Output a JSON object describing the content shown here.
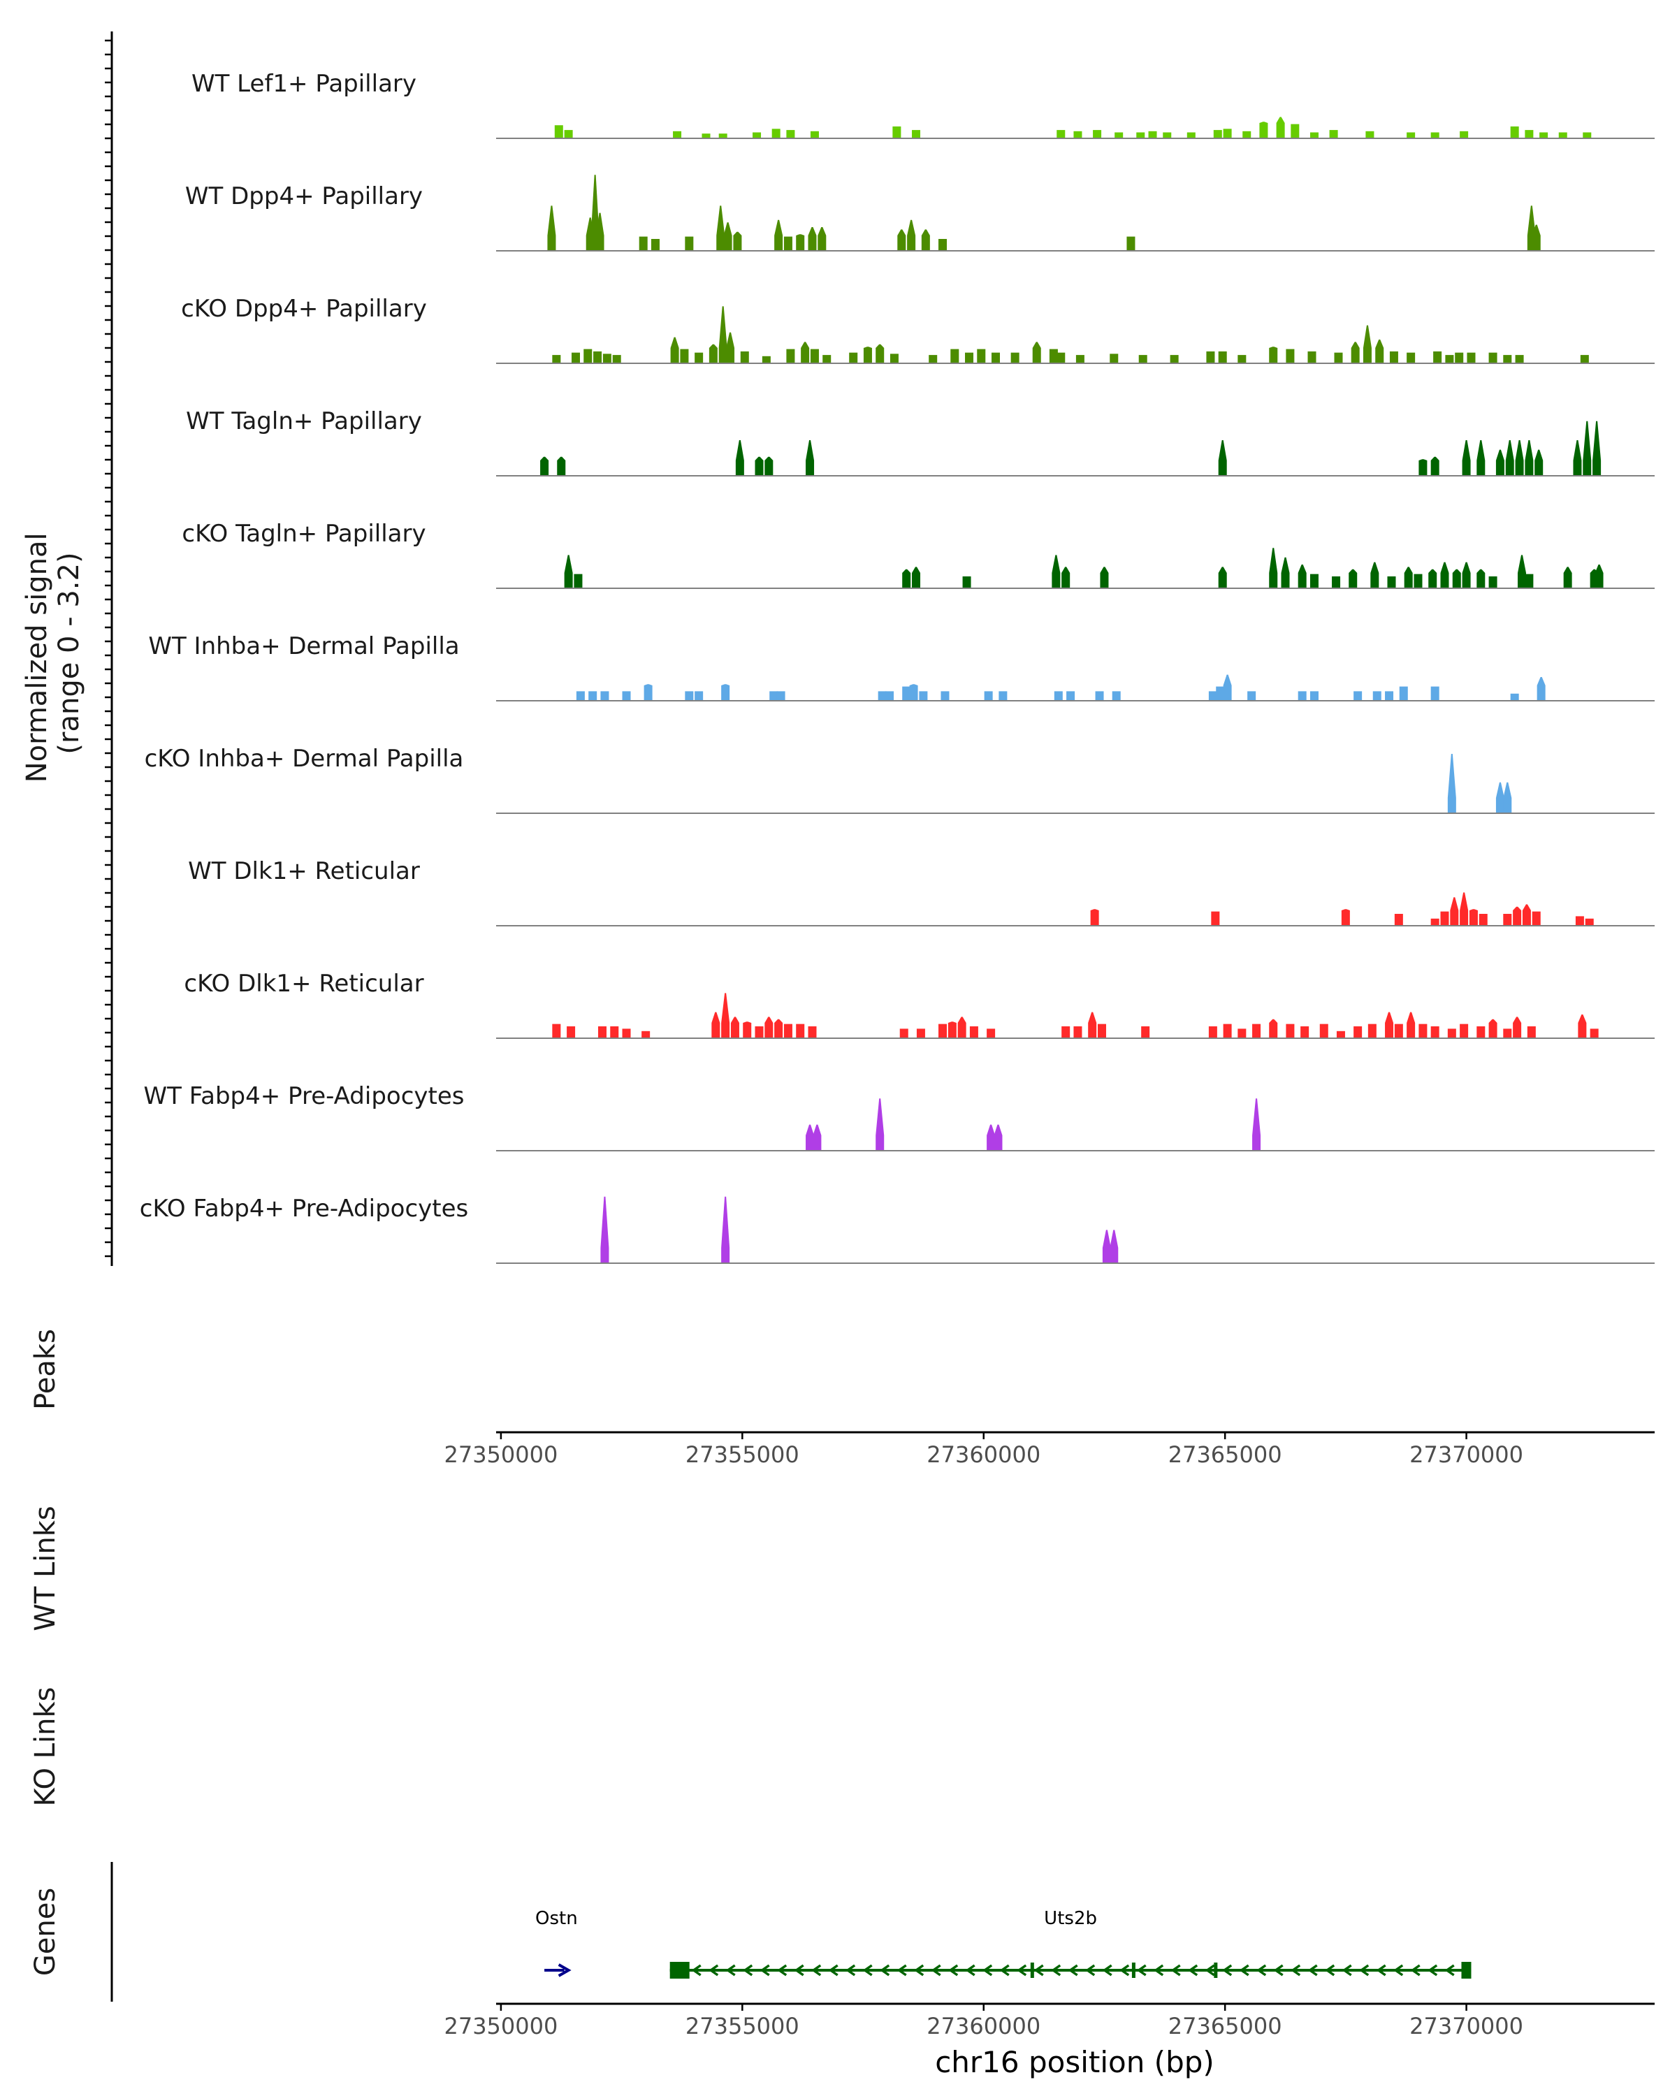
{
  "chart_data": {
    "type": "area",
    "title": "",
    "region": "chr16",
    "xlim": [
      27349900,
      27373900
    ],
    "x_ticks": [
      27350000,
      27355000,
      27360000,
      27365000,
      27370000
    ],
    "x_tick_labels": [
      "27350000",
      "27355000",
      "27360000",
      "27365000",
      "27370000"
    ],
    "xlabel": "chr16 position (bp)",
    "coverage_ylabel": "Normalized signal\n(range 0 - 3.2)",
    "coverage_ylim": [
      0,
      3.2
    ],
    "panel_labels": {
      "peaks": "Peaks",
      "wt_links": "WT Links",
      "ko_links": "KO Links",
      "genes": "Genes"
    },
    "series": [
      {
        "name": "WT Lef1+ Papillary",
        "color": "#66cc00",
        "peaks": [
          [
            27351200,
            0.55
          ],
          [
            27351400,
            0.35
          ],
          [
            27353650,
            0.3
          ],
          [
            27354250,
            0.2
          ],
          [
            27354600,
            0.2
          ],
          [
            27355300,
            0.25
          ],
          [
            27355700,
            0.4
          ],
          [
            27356000,
            0.35
          ],
          [
            27356500,
            0.3
          ],
          [
            27358200,
            0.5
          ],
          [
            27358600,
            0.35
          ],
          [
            27361600,
            0.35
          ],
          [
            27361950,
            0.3
          ],
          [
            27362350,
            0.35
          ],
          [
            27362800,
            0.25
          ],
          [
            27363250,
            0.25
          ],
          [
            27363500,
            0.3
          ],
          [
            27363800,
            0.25
          ],
          [
            27364300,
            0.25
          ],
          [
            27364850,
            0.35
          ],
          [
            27365050,
            0.4
          ],
          [
            27365450,
            0.3
          ],
          [
            27365800,
            0.7
          ],
          [
            27366150,
            0.9
          ],
          [
            27366450,
            0.6
          ],
          [
            27366850,
            0.25
          ],
          [
            27367250,
            0.35
          ],
          [
            27368000,
            0.3
          ],
          [
            27368850,
            0.25
          ],
          [
            27369350,
            0.25
          ],
          [
            27369950,
            0.3
          ],
          [
            27371000,
            0.5
          ],
          [
            27371300,
            0.35
          ],
          [
            27371600,
            0.25
          ],
          [
            27372000,
            0.25
          ],
          [
            27372500,
            0.25
          ]
        ]
      },
      {
        "name": "WT Dpp4+ Papillary",
        "color": "#4c8c00",
        "peaks": [
          [
            27351050,
            1.9
          ],
          [
            27351850,
            1.4
          ],
          [
            27351950,
            3.2
          ],
          [
            27352050,
            1.6
          ],
          [
            27352950,
            0.6
          ],
          [
            27353200,
            0.5
          ],
          [
            27353900,
            0.6
          ],
          [
            27354550,
            1.9
          ],
          [
            27354700,
            1.2
          ],
          [
            27354900,
            0.8
          ],
          [
            27355750,
            1.3
          ],
          [
            27355950,
            0.6
          ],
          [
            27356200,
            0.7
          ],
          [
            27356450,
            1.0
          ],
          [
            27356650,
            1.0
          ],
          [
            27358300,
            0.9
          ],
          [
            27358500,
            1.3
          ],
          [
            27358800,
            0.9
          ],
          [
            27359150,
            0.5
          ],
          [
            27363050,
            0.6
          ],
          [
            27371350,
            1.9
          ],
          [
            27371450,
            1.1
          ]
        ]
      },
      {
        "name": "cKO Dpp4+ Papillary",
        "color": "#4c8c00",
        "peaks": [
          [
            27351150,
            0.35
          ],
          [
            27351550,
            0.45
          ],
          [
            27351800,
            0.6
          ],
          [
            27352000,
            0.5
          ],
          [
            27352200,
            0.4
          ],
          [
            27352400,
            0.35
          ],
          [
            27353600,
            1.1
          ],
          [
            27353800,
            0.6
          ],
          [
            27354100,
            0.45
          ],
          [
            27354400,
            0.8
          ],
          [
            27354600,
            2.4
          ],
          [
            27354750,
            1.3
          ],
          [
            27355050,
            0.5
          ],
          [
            27355500,
            0.3
          ],
          [
            27356000,
            0.6
          ],
          [
            27356300,
            0.9
          ],
          [
            27356500,
            0.6
          ],
          [
            27356750,
            0.35
          ],
          [
            27357300,
            0.45
          ],
          [
            27357600,
            0.7
          ],
          [
            27357850,
            0.8
          ],
          [
            27358150,
            0.4
          ],
          [
            27358950,
            0.35
          ],
          [
            27359400,
            0.6
          ],
          [
            27359700,
            0.45
          ],
          [
            27359950,
            0.6
          ],
          [
            27360250,
            0.45
          ],
          [
            27360650,
            0.45
          ],
          [
            27361100,
            0.9
          ],
          [
            27361450,
            0.6
          ],
          [
            27361600,
            0.45
          ],
          [
            27362000,
            0.35
          ],
          [
            27362700,
            0.4
          ],
          [
            27363300,
            0.35
          ],
          [
            27363950,
            0.35
          ],
          [
            27364700,
            0.5
          ],
          [
            27364950,
            0.5
          ],
          [
            27365350,
            0.35
          ],
          [
            27366000,
            0.7
          ],
          [
            27366350,
            0.6
          ],
          [
            27366800,
            0.5
          ],
          [
            27367350,
            0.45
          ],
          [
            27367700,
            0.9
          ],
          [
            27367950,
            1.6
          ],
          [
            27368200,
            1.0
          ],
          [
            27368500,
            0.5
          ],
          [
            27368850,
            0.45
          ],
          [
            27369400,
            0.5
          ],
          [
            27369650,
            0.35
          ],
          [
            27369850,
            0.45
          ],
          [
            27370100,
            0.45
          ],
          [
            27370550,
            0.45
          ],
          [
            27370850,
            0.35
          ],
          [
            27371100,
            0.35
          ],
          [
            27372450,
            0.35
          ]
        ]
      },
      {
        "name": "WT Tagln+ Papillary",
        "color": "#006400",
        "peaks": [
          [
            27350900,
            0.8
          ],
          [
            27351250,
            0.8
          ],
          [
            27354950,
            1.5
          ],
          [
            27355350,
            0.8
          ],
          [
            27355550,
            0.8
          ],
          [
            27356400,
            1.5
          ],
          [
            27364950,
            1.5
          ],
          [
            27369100,
            0.7
          ],
          [
            27369350,
            0.8
          ],
          [
            27370000,
            1.5
          ],
          [
            27370300,
            1.5
          ],
          [
            27370700,
            1.1
          ],
          [
            27370900,
            1.5
          ],
          [
            27371100,
            1.5
          ],
          [
            27371300,
            1.5
          ],
          [
            27371500,
            1.1
          ],
          [
            27372300,
            1.5
          ],
          [
            27372500,
            2.3
          ],
          [
            27372700,
            2.3
          ]
        ]
      },
      {
        "name": "cKO Tagln+ Papillary",
        "color": "#006400",
        "peaks": [
          [
            27351400,
            1.4
          ],
          [
            27351600,
            0.6
          ],
          [
            27358400,
            0.8
          ],
          [
            27358600,
            0.9
          ],
          [
            27359650,
            0.5
          ],
          [
            27361500,
            1.4
          ],
          [
            27361700,
            0.9
          ],
          [
            27362500,
            0.9
          ],
          [
            27364950,
            0.9
          ],
          [
            27366000,
            1.7
          ],
          [
            27366250,
            1.3
          ],
          [
            27366600,
            1.0
          ],
          [
            27366850,
            0.6
          ],
          [
            27367300,
            0.5
          ],
          [
            27367650,
            0.8
          ],
          [
            27368100,
            1.1
          ],
          [
            27368450,
            0.5
          ],
          [
            27368800,
            0.9
          ],
          [
            27369000,
            0.6
          ],
          [
            27369300,
            0.8
          ],
          [
            27369550,
            1.1
          ],
          [
            27369800,
            0.8
          ],
          [
            27370000,
            1.1
          ],
          [
            27370300,
            0.8
          ],
          [
            27370550,
            0.5
          ],
          [
            27371150,
            1.4
          ],
          [
            27371300,
            0.6
          ],
          [
            27372100,
            0.9
          ],
          [
            27372650,
            0.8
          ],
          [
            27372750,
            1.0
          ]
        ]
      },
      {
        "name": "WT Inhba+ Dermal Papilla",
        "color": "#5ea9e6",
        "peaks": [
          [
            27351650,
            0.4
          ],
          [
            27351900,
            0.4
          ],
          [
            27352150,
            0.4
          ],
          [
            27352600,
            0.4
          ],
          [
            27353050,
            0.7
          ],
          [
            27353900,
            0.4
          ],
          [
            27354100,
            0.4
          ],
          [
            27354650,
            0.7
          ],
          [
            27355650,
            0.4
          ],
          [
            27355800,
            0.4
          ],
          [
            27357900,
            0.4
          ],
          [
            27358050,
            0.4
          ],
          [
            27358400,
            0.6
          ],
          [
            27358550,
            0.7
          ],
          [
            27358750,
            0.4
          ],
          [
            27359200,
            0.4
          ],
          [
            27360100,
            0.4
          ],
          [
            27360400,
            0.4
          ],
          [
            27361550,
            0.4
          ],
          [
            27361800,
            0.4
          ],
          [
            27362400,
            0.4
          ],
          [
            27362750,
            0.4
          ],
          [
            27364750,
            0.4
          ],
          [
            27364900,
            0.6
          ],
          [
            27365050,
            1.1
          ],
          [
            27365550,
            0.4
          ],
          [
            27366600,
            0.4
          ],
          [
            27366850,
            0.4
          ],
          [
            27367750,
            0.4
          ],
          [
            27368150,
            0.4
          ],
          [
            27368400,
            0.4
          ],
          [
            27368700,
            0.6
          ],
          [
            27369350,
            0.6
          ],
          [
            27371000,
            0.3
          ],
          [
            27371550,
            1.0
          ]
        ]
      },
      {
        "name": "cKO Inhba+ Dermal Papilla",
        "color": "#5ea9e6",
        "peaks": [
          [
            27369700,
            2.5
          ],
          [
            27370700,
            1.3
          ],
          [
            27370850,
            1.3
          ]
        ]
      },
      {
        "name": "WT Dlk1+ Reticular",
        "color": "#ff2a2a",
        "peaks": [
          [
            27362300,
            0.7
          ],
          [
            27364800,
            0.6
          ],
          [
            27367500,
            0.7
          ],
          [
            27368600,
            0.5
          ],
          [
            27369350,
            0.3
          ],
          [
            27369550,
            0.6
          ],
          [
            27369750,
            1.2
          ],
          [
            27369950,
            1.4
          ],
          [
            27370150,
            0.7
          ],
          [
            27370350,
            0.5
          ],
          [
            27370850,
            0.5
          ],
          [
            27371050,
            0.8
          ],
          [
            27371250,
            0.9
          ],
          [
            27371450,
            0.6
          ],
          [
            27372350,
            0.4
          ],
          [
            27372550,
            0.3
          ]
        ]
      },
      {
        "name": "cKO Dlk1+ Reticular",
        "color": "#ff2a2a",
        "peaks": [
          [
            27351150,
            0.6
          ],
          [
            27351450,
            0.5
          ],
          [
            27352100,
            0.5
          ],
          [
            27352350,
            0.5
          ],
          [
            27352600,
            0.4
          ],
          [
            27353000,
            0.3
          ],
          [
            27354450,
            1.1
          ],
          [
            27354650,
            1.9
          ],
          [
            27354850,
            0.9
          ],
          [
            27355100,
            0.7
          ],
          [
            27355350,
            0.5
          ],
          [
            27355550,
            0.9
          ],
          [
            27355750,
            0.8
          ],
          [
            27355950,
            0.6
          ],
          [
            27356200,
            0.6
          ],
          [
            27356450,
            0.5
          ],
          [
            27358350,
            0.4
          ],
          [
            27358700,
            0.4
          ],
          [
            27359150,
            0.6
          ],
          [
            27359350,
            0.7
          ],
          [
            27359550,
            0.9
          ],
          [
            27359800,
            0.5
          ],
          [
            27360150,
            0.4
          ],
          [
            27361700,
            0.5
          ],
          [
            27361950,
            0.5
          ],
          [
            27362250,
            1.1
          ],
          [
            27362450,
            0.6
          ],
          [
            27363350,
            0.5
          ],
          [
            27364750,
            0.5
          ],
          [
            27365050,
            0.6
          ],
          [
            27365350,
            0.4
          ],
          [
            27365650,
            0.6
          ],
          [
            27366000,
            0.8
          ],
          [
            27366350,
            0.6
          ],
          [
            27366650,
            0.5
          ],
          [
            27367050,
            0.6
          ],
          [
            27367400,
            0.3
          ],
          [
            27367750,
            0.5
          ],
          [
            27368050,
            0.6
          ],
          [
            27368400,
            1.1
          ],
          [
            27368600,
            0.6
          ],
          [
            27368850,
            1.1
          ],
          [
            27369100,
            0.6
          ],
          [
            27369350,
            0.5
          ],
          [
            27369700,
            0.4
          ],
          [
            27369950,
            0.6
          ],
          [
            27370300,
            0.5
          ],
          [
            27370550,
            0.8
          ],
          [
            27370850,
            0.4
          ],
          [
            27371050,
            0.9
          ],
          [
            27371350,
            0.5
          ],
          [
            27372400,
            1.0
          ],
          [
            27372650,
            0.4
          ]
        ]
      },
      {
        "name": "WT Fabp4+ Pre-Adipocytes",
        "color": "#b03ee6",
        "peaks": [
          [
            27356400,
            1.1
          ],
          [
            27356550,
            1.1
          ],
          [
            27357850,
            2.2
          ],
          [
            27360150,
            1.1
          ],
          [
            27360300,
            1.1
          ],
          [
            27365650,
            2.2
          ]
        ]
      },
      {
        "name": "cKO Fabp4+ Pre-Adipocytes",
        "color": "#b03ee6",
        "peaks": [
          [
            27352150,
            2.8
          ],
          [
            27354650,
            2.8
          ],
          [
            27362550,
            1.4
          ],
          [
            27362700,
            1.4
          ]
        ]
      }
    ],
    "genes": [
      {
        "name": "Ostn",
        "start": 27350900,
        "end": 27351400,
        "strand": "+",
        "color": "#00008b"
      },
      {
        "name": "Uts2b",
        "start": 27353500,
        "end": 27370100,
        "strand": "-",
        "color": "#006400"
      }
    ]
  }
}
